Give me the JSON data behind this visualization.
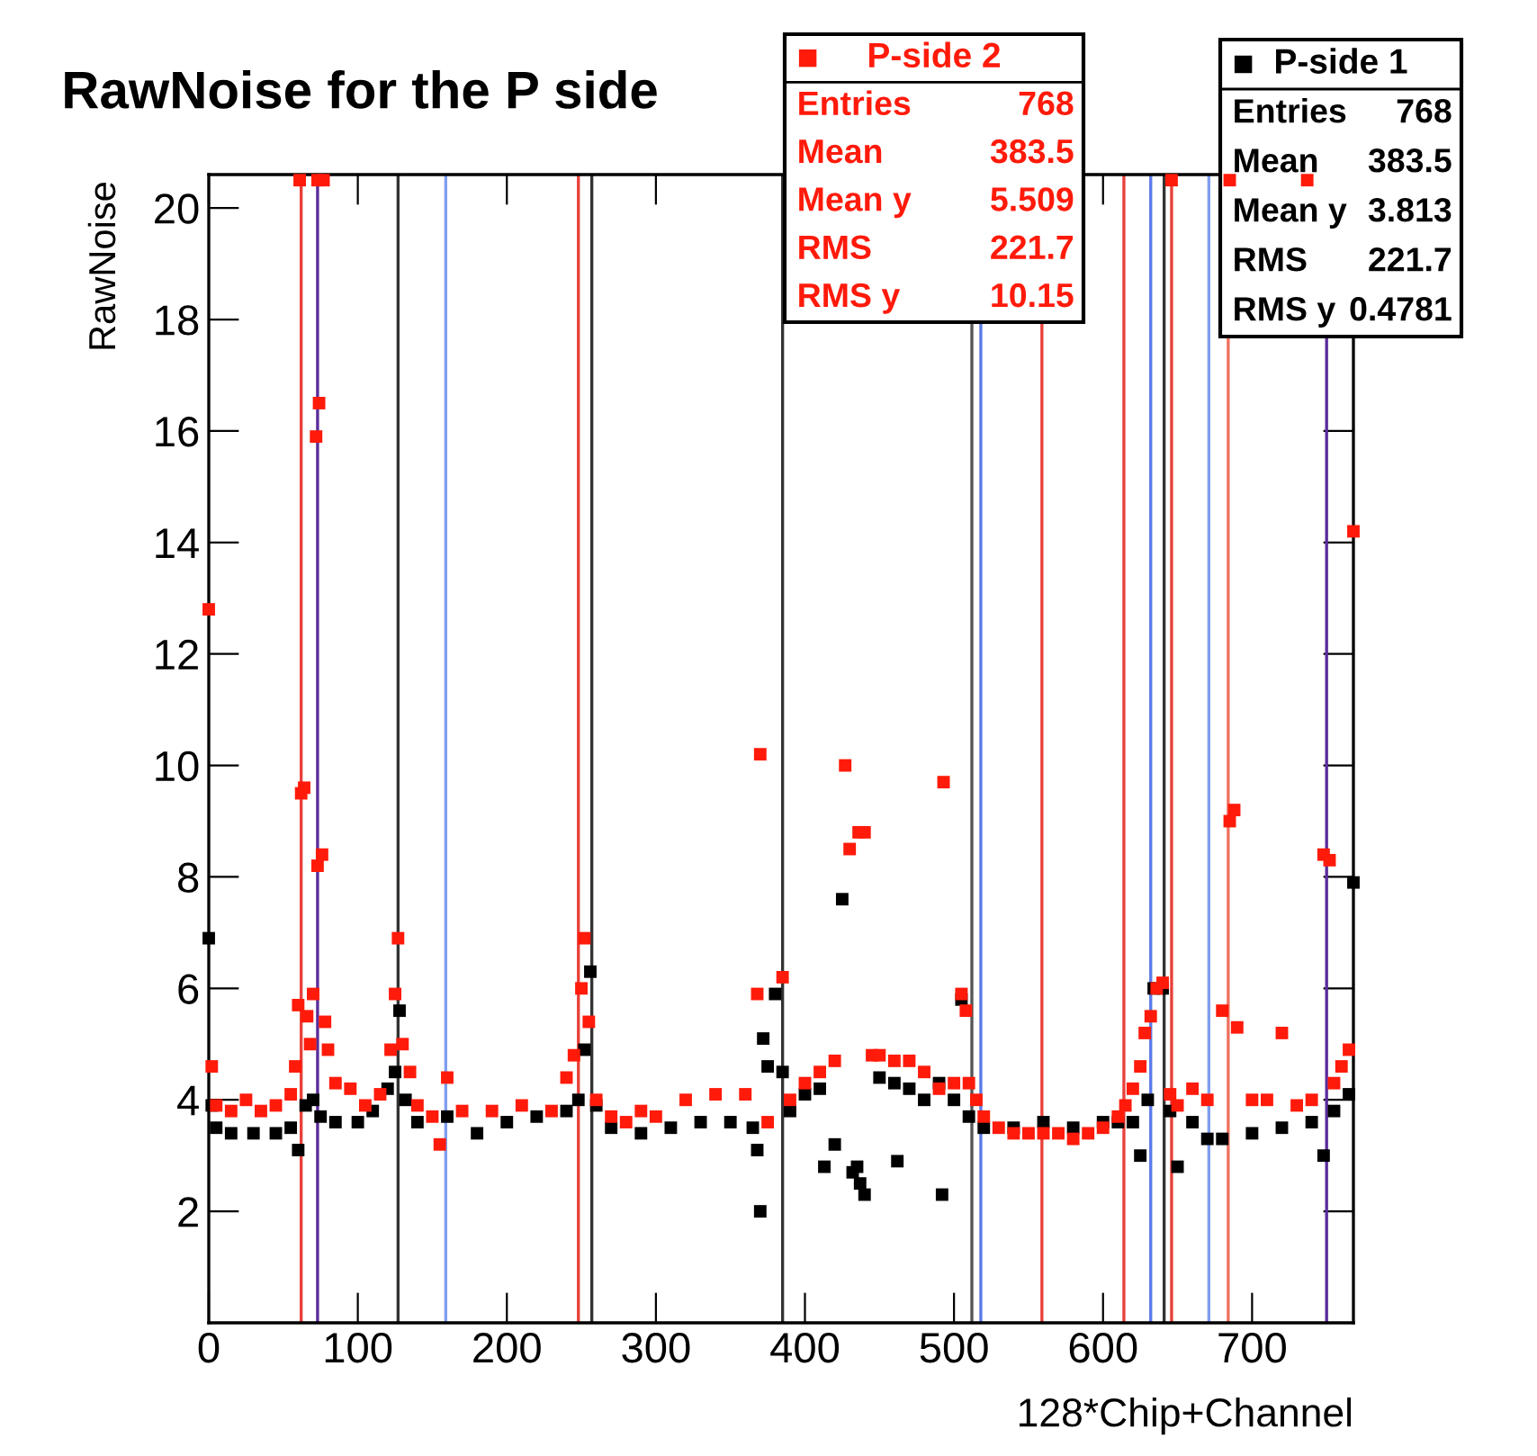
{
  "chart_data": {
    "type": "scatter",
    "title": "RawNoise for the P side",
    "xlabel": "128*Chip+Channel",
    "ylabel": "RawNoise",
    "xlim": [
      0,
      768
    ],
    "ylim": [
      0,
      20.6
    ],
    "xticks": [
      0,
      100,
      200,
      300,
      400,
      500,
      600,
      700
    ],
    "yticks": [
      2,
      4,
      6,
      8,
      10,
      12,
      14,
      16,
      18,
      20
    ],
    "grid": false,
    "marker": "square",
    "legend": "top right",
    "series": [
      {
        "name": "P-side 1",
        "color": "#000000",
        "x": [
          0,
          2,
          5,
          15,
          30,
          45,
          55,
          60,
          65,
          70,
          75,
          85,
          100,
          110,
          120,
          125,
          128,
          132,
          140,
          160,
          180,
          200,
          220,
          240,
          248,
          252,
          256,
          260,
          270,
          290,
          310,
          330,
          350,
          365,
          368,
          370,
          372,
          375,
          380,
          385,
          390,
          400,
          410,
          413,
          420,
          425,
          432,
          435,
          437,
          440,
          450,
          460,
          462,
          470,
          480,
          490,
          492,
          500,
          505,
          510,
          520,
          540,
          560,
          580,
          600,
          610,
          620,
          625,
          630,
          634,
          640,
          645,
          650,
          660,
          670,
          680,
          700,
          720,
          740,
          748,
          755,
          765,
          768
        ],
        "values": [
          6.9,
          3.9,
          3.5,
          3.4,
          3.4,
          3.4,
          3.5,
          3.1,
          3.9,
          4.0,
          3.7,
          3.6,
          3.6,
          3.8,
          4.2,
          4.5,
          5.6,
          4.0,
          3.6,
          3.7,
          3.4,
          3.6,
          3.7,
          3.8,
          4.0,
          4.9,
          6.3,
          3.9,
          3.5,
          3.4,
          3.5,
          3.6,
          3.6,
          3.5,
          3.1,
          2.0,
          5.1,
          4.6,
          5.9,
          4.5,
          3.8,
          4.1,
          4.2,
          2.8,
          3.2,
          7.6,
          2.7,
          2.8,
          2.5,
          2.3,
          4.4,
          4.3,
          2.9,
          4.2,
          4.0,
          4.3,
          2.3,
          4.0,
          5.8,
          3.7,
          3.5,
          3.5,
          3.6,
          3.5,
          3.6,
          3.6,
          3.6,
          3.0,
          4.0,
          6.0,
          6.0,
          3.8,
          2.8,
          3.6,
          3.3,
          3.3,
          3.4,
          3.5,
          3.6,
          3.0,
          3.8,
          4.1,
          7.9
        ]
      },
      {
        "name": "P-side 2",
        "color": "#ff1a0a",
        "x": [
          0,
          2,
          5,
          15,
          25,
          35,
          45,
          55,
          58,
          60,
          61,
          62,
          64,
          66,
          68,
          70,
          72,
          73,
          73,
          74,
          76,
          77,
          78,
          80,
          85,
          95,
          105,
          115,
          122,
          125,
          127,
          130,
          135,
          140,
          150,
          155,
          160,
          170,
          190,
          210,
          230,
          240,
          245,
          250,
          252,
          255,
          260,
          270,
          280,
          290,
          300,
          320,
          340,
          360,
          368,
          370,
          375,
          385,
          390,
          400,
          410,
          420,
          427,
          430,
          436,
          440,
          445,
          450,
          460,
          470,
          480,
          490,
          493,
          500,
          505,
          508,
          510,
          515,
          520,
          530,
          540,
          550,
          560,
          570,
          580,
          590,
          600,
          610,
          615,
          620,
          625,
          628,
          632,
          636,
          640,
          645,
          646,
          650,
          660,
          670,
          680,
          685,
          685,
          688,
          690,
          700,
          710,
          720,
          730,
          737,
          740,
          748,
          752,
          755,
          760,
          765,
          768
        ],
        "values": [
          12.8,
          4.6,
          3.9,
          3.8,
          4.0,
          3.8,
          3.9,
          4.1,
          4.6,
          5.7,
          20.5,
          9.5,
          9.6,
          5.5,
          5.0,
          5.9,
          15.9,
          8.2,
          20.5,
          16.5,
          8.4,
          20.5,
          5.4,
          4.9,
          4.3,
          4.2,
          3.9,
          4.1,
          4.9,
          5.9,
          6.9,
          5.0,
          4.5,
          3.9,
          3.7,
          3.2,
          4.4,
          3.8,
          3.8,
          3.9,
          3.8,
          4.4,
          4.8,
          6.0,
          6.9,
          5.4,
          4.0,
          3.7,
          3.6,
          3.8,
          3.7,
          4.0,
          4.1,
          4.1,
          5.9,
          10.2,
          3.6,
          6.2,
          4.0,
          4.3,
          4.5,
          4.7,
          10.0,
          8.5,
          8.8,
          8.8,
          4.8,
          4.8,
          4.7,
          4.7,
          4.5,
          4.2,
          9.7,
          4.3,
          5.9,
          5.6,
          4.3,
          4.0,
          3.7,
          3.5,
          3.4,
          3.4,
          3.4,
          3.4,
          3.3,
          3.4,
          3.5,
          3.7,
          3.9,
          4.2,
          4.6,
          5.2,
          5.5,
          6.0,
          6.1,
          4.1,
          20.5,
          3.9,
          4.2,
          4.0,
          5.6,
          9.0,
          20.5,
          9.2,
          5.3,
          4.0,
          4.0,
          5.2,
          3.9,
          20.5,
          4.0,
          8.4,
          8.3,
          4.3,
          4.6,
          4.9,
          14.2
        ]
      }
    ],
    "annotations": [
      "Entries 768\nMean 383.5\nMean y 3.813\nRMS 221.7\nRMS y 0.4781",
      "Entries 768\nMean 383.5\nMean y 5.509\nRMS 221.7\nRMS y 10.15"
    ],
    "ref_lines": [
      {
        "axis": "x",
        "value": 62,
        "color": "#e8403a"
      },
      {
        "axis": "x",
        "value": 73,
        "color": "#5a2c9a"
      },
      {
        "axis": "x",
        "value": 127,
        "color": "#333333"
      },
      {
        "axis": "x",
        "value": 159,
        "color": "#7f9ef0"
      },
      {
        "axis": "x",
        "value": 248,
        "color": "#e8403a"
      },
      {
        "axis": "x",
        "value": 257,
        "color": "#333333"
      },
      {
        "axis": "x",
        "value": 385,
        "color": "#333333"
      },
      {
        "axis": "x",
        "value": 512,
        "color": "#555555"
      },
      {
        "axis": "x",
        "value": 518,
        "color": "#5a7ae8"
      },
      {
        "axis": "x",
        "value": 559,
        "color": "#e8403a"
      },
      {
        "axis": "x",
        "value": 614,
        "color": "#e8403a"
      },
      {
        "axis": "x",
        "value": 632,
        "color": "#5a7ae8"
      },
      {
        "axis": "x",
        "value": 641,
        "color": "#333333"
      },
      {
        "axis": "x",
        "value": 646,
        "color": "#e8403a"
      },
      {
        "axis": "x",
        "value": 671,
        "color": "#7f9ef0"
      },
      {
        "axis": "x",
        "value": 684,
        "color": "#f07060"
      },
      {
        "axis": "x",
        "value": 750,
        "color": "#5a2c9a"
      }
    ]
  }
}
